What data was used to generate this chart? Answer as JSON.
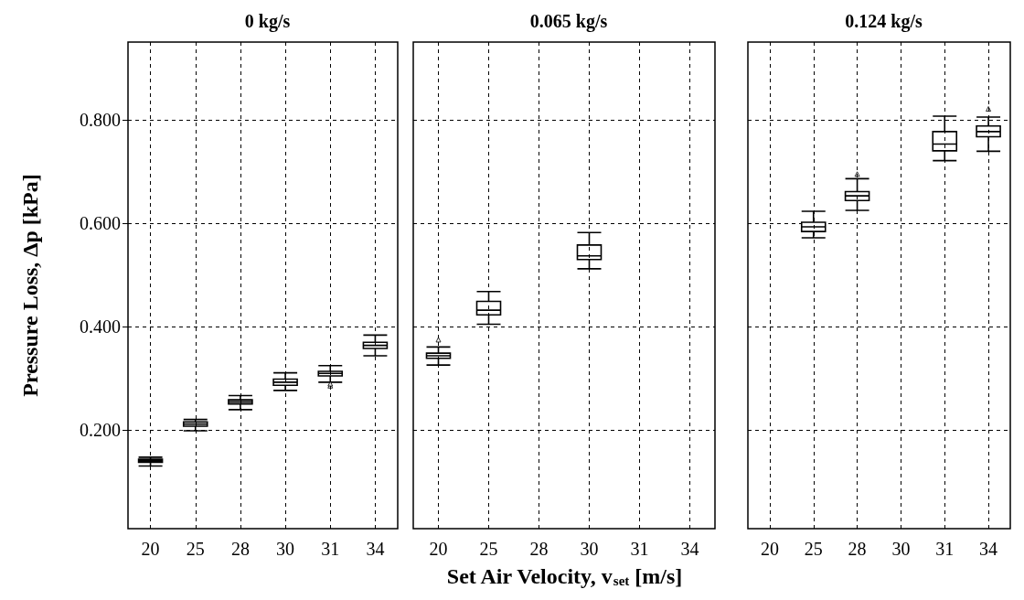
{
  "chart_data": [
    {
      "type": "box",
      "title": "0 kg/s",
      "ylabel": "Pressure Loss, Δp [kPa]",
      "categories": [
        "20",
        "25",
        "28",
        "30",
        "31",
        "34"
      ],
      "boxes": [
        {
          "low": 0.131,
          "q1": 0.138,
          "median": 0.141,
          "q3": 0.144,
          "high": 0.148
        },
        {
          "low": 0.199,
          "q1": 0.208,
          "median": 0.212,
          "q3": 0.216,
          "high": 0.221
        },
        {
          "low": 0.24,
          "q1": 0.251,
          "median": 0.255,
          "q3": 0.259,
          "high": 0.267
        },
        {
          "low": 0.277,
          "q1": 0.287,
          "median": 0.293,
          "q3": 0.299,
          "high": 0.311
        },
        {
          "low": 0.293,
          "q1": 0.305,
          "median": 0.31,
          "q3": 0.314,
          "high": 0.325,
          "outliers": [
            0.286,
            0.29
          ]
        },
        {
          "low": 0.344,
          "q1": 0.358,
          "median": 0.364,
          "q3": 0.37,
          "high": 0.384
        }
      ],
      "ylim": [
        0.01,
        0.95
      ],
      "yticks": [
        {
          "value": 0.2,
          "label": "0.200"
        },
        {
          "value": 0.4,
          "label": "0.400"
        },
        {
          "value": 0.6,
          "label": "0.600"
        },
        {
          "value": 0.8,
          "label": "0.800"
        }
      ],
      "grid": true
    },
    {
      "type": "box",
      "title": "0.065 kg/s",
      "xlabel": "Set Air Velocity, v$_{set}$ [m/s]",
      "categories": [
        "20",
        "25",
        "28",
        "30",
        "31",
        "34"
      ],
      "boxes": [
        {
          "low": 0.326,
          "q1": 0.339,
          "median": 0.344,
          "q3": 0.349,
          "high": 0.361,
          "outliers": [
            0.375
          ]
        },
        {
          "low": 0.405,
          "q1": 0.423,
          "median": 0.432,
          "q3": 0.449,
          "high": 0.468
        },
        null,
        {
          "low": 0.512,
          "q1": 0.53,
          "median": 0.537,
          "q3": 0.558,
          "high": 0.582
        },
        null,
        null
      ],
      "ylim": [
        0.01,
        0.95
      ],
      "yticks": [
        {
          "value": 0.2,
          "label": null
        },
        {
          "value": 0.4,
          "label": null
        },
        {
          "value": 0.6,
          "label": null
        },
        {
          "value": 0.8,
          "label": null
        }
      ],
      "grid": true,
      "tick_labels": "x"
    },
    {
      "type": "box",
      "title": "0.124 kg/s",
      "categories": [
        "20",
        "25",
        "28",
        "30",
        "31",
        "34"
      ],
      "boxes": [
        null,
        {
          "low": 0.572,
          "q1": 0.584,
          "median": 0.593,
          "q3": 0.602,
          "high": 0.623
        },
        {
          "low": 0.625,
          "q1": 0.644,
          "median": 0.653,
          "q3": 0.661,
          "high": 0.686,
          "outliers": [
            0.695
          ]
        },
        null,
        {
          "low": 0.721,
          "q1": 0.74,
          "median": 0.753,
          "q3": 0.777,
          "high": 0.807
        },
        {
          "low": 0.739,
          "q1": 0.767,
          "median": 0.777,
          "q3": 0.788,
          "high": 0.805,
          "outliers": [
            0.821
          ]
        }
      ],
      "ylim": [
        0.01,
        0.95
      ],
      "yticks": [
        {
          "value": 0.2,
          "label": null
        },
        {
          "value": 0.4,
          "label": null
        },
        {
          "value": 0.6,
          "label": null
        },
        {
          "value": 0.8,
          "label": null
        }
      ],
      "grid": true,
      "tick_labels": "x"
    }
  ]
}
